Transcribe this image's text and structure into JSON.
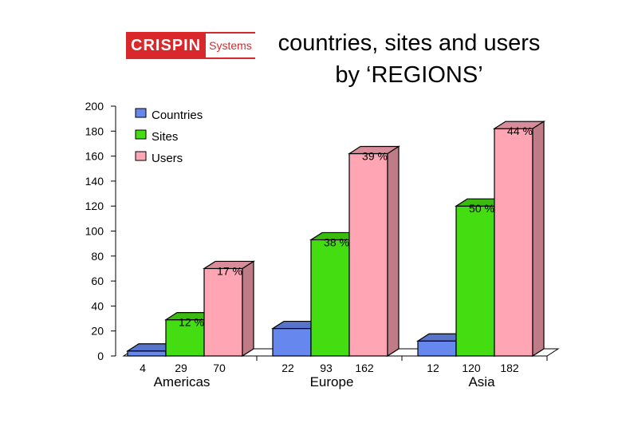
{
  "logo": {
    "main": "CRISPIN",
    "sub": "Systems"
  },
  "title": "countries, sites and users\nby ‘REGIONS’",
  "colors": {
    "countries": "#6688ee",
    "sites": "#44dd11",
    "users": "#ffa5b4"
  },
  "chart_data": {
    "type": "bar",
    "title": "countries, sites and users by ‘REGIONS’",
    "categories": [
      "Americas",
      "Europe",
      "Asia"
    ],
    "series": [
      {
        "name": "Countries",
        "values": [
          4,
          22,
          12
        ],
        "value_labels": [
          "4",
          "22",
          "12"
        ]
      },
      {
        "name": "Sites",
        "values": [
          29,
          93,
          120
        ],
        "value_labels": [
          "29",
          "93",
          "120"
        ],
        "pct_labels": [
          "12 %",
          "38 %",
          "50 %"
        ]
      },
      {
        "name": "Users",
        "values": [
          70,
          162,
          182
        ],
        "value_labels": [
          "70",
          "162",
          "182"
        ],
        "pct_labels": [
          "17 %",
          "39 %",
          "44 %"
        ]
      }
    ],
    "ylim": [
      0,
      200
    ],
    "yticks": [
      "0",
      "20",
      "40",
      "60",
      "80",
      "100",
      "120",
      "140",
      "160",
      "180",
      "200"
    ],
    "legend": "top-left",
    "grid": false
  }
}
